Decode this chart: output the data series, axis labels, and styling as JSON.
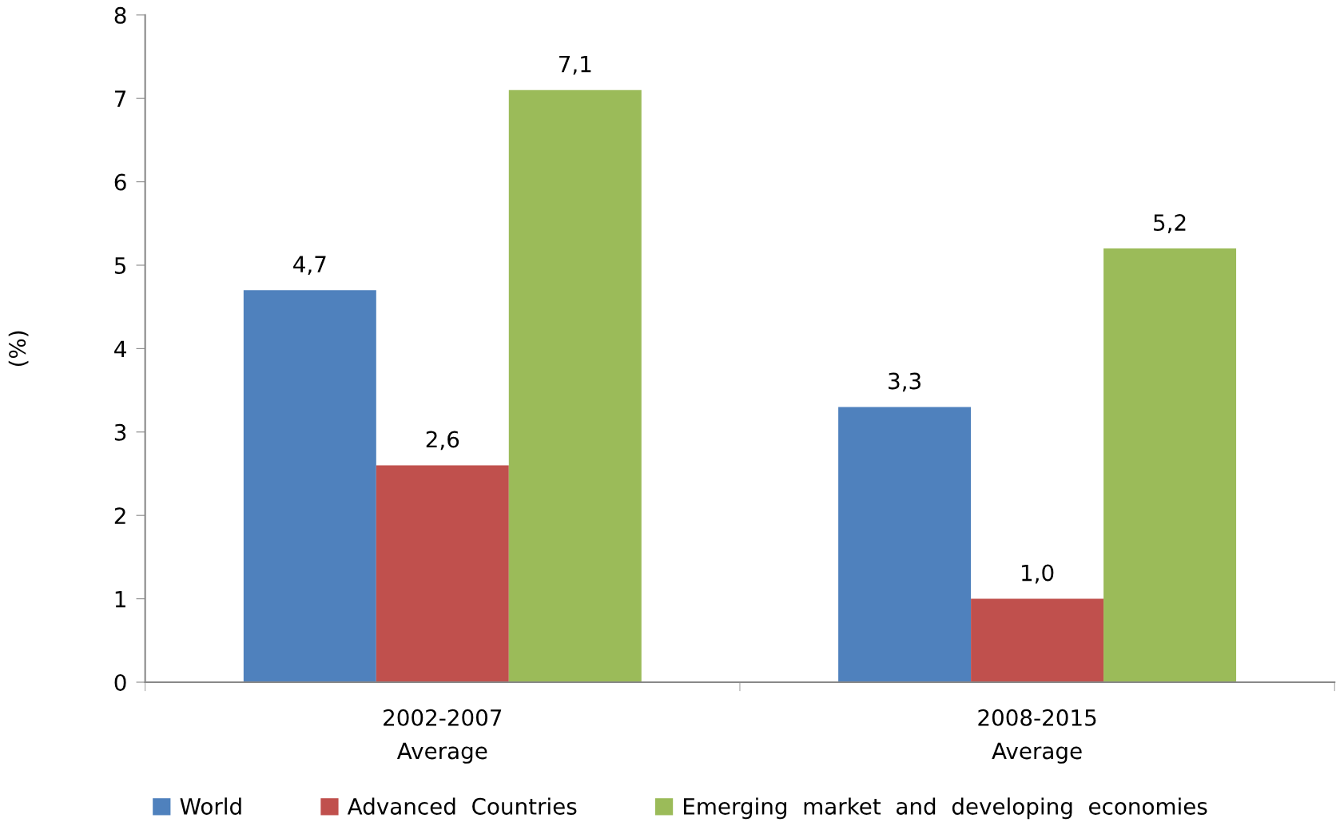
{
  "chart_data": {
    "type": "bar",
    "ylabel": "(%)",
    "categories": [
      "2002-2007\nAverage",
      "2008-2015\nAverage"
    ],
    "series": [
      {
        "name": "World",
        "color": "#4f81bd",
        "values": [
          4.7,
          3.3
        ],
        "value_labels": [
          "4,7",
          "3,3"
        ]
      },
      {
        "name": "Advanced  Countries",
        "color": "#c0504d",
        "values": [
          2.6,
          1.0
        ],
        "value_labels": [
          "2,6",
          "1,0"
        ]
      },
      {
        "name": "Emerging  market  and  developing  economies",
        "color": "#9bbb59",
        "values": [
          7.1,
          5.2
        ],
        "value_labels": [
          "7,1",
          "5,2"
        ]
      }
    ],
    "ylim": [
      0,
      8
    ],
    "yticks": [
      0,
      1,
      2,
      3,
      4,
      5,
      6,
      7,
      8
    ],
    "grid": false,
    "legend": "bottom"
  }
}
